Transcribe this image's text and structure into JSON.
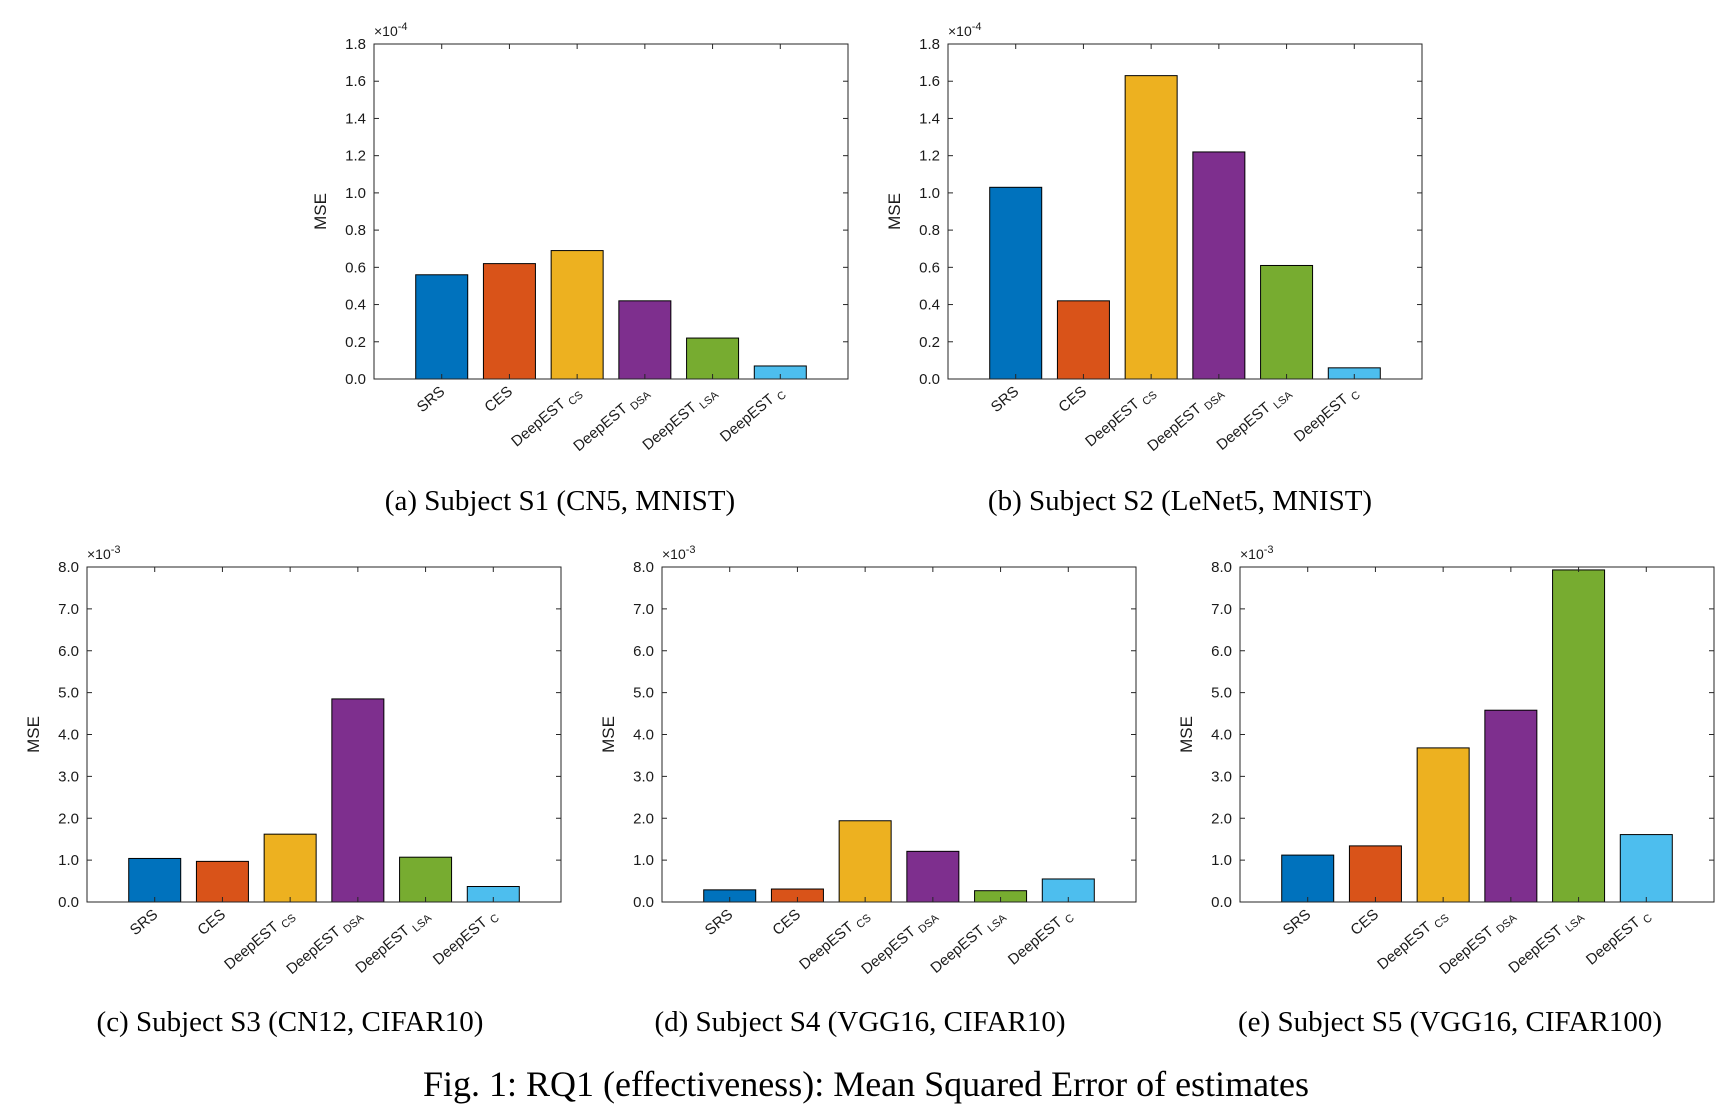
{
  "figure_caption": "Fig. 1: RQ1 (effectiveness): Mean Squared Error of estimates",
  "colors": [
    "#0072BD",
    "#D95319",
    "#EDB120",
    "#7E2F8E",
    "#77AC30",
    "#4DBEEE"
  ],
  "chart_data": [
    {
      "type": "bar",
      "caption": "(a) Subject S1 (CN5, MNIST)",
      "ylabel": "MSE",
      "exponent_base": "×10",
      "exponent": "-4",
      "ylim": [
        0,
        1.8
      ],
      "yticks": [
        "0.0",
        "0.2",
        "0.4",
        "0.6",
        "0.8",
        "1.0",
        "1.2",
        "1.4",
        "1.6",
        "1.8"
      ],
      "categories": [
        {
          "name": "SRS",
          "sub": ""
        },
        {
          "name": "CES",
          "sub": ""
        },
        {
          "name": "DeepEST",
          "sub": "CS"
        },
        {
          "name": "DeepEST",
          "sub": "DSA"
        },
        {
          "name": "DeepEST",
          "sub": "LSA"
        },
        {
          "name": "DeepEST",
          "sub": "C"
        }
      ],
      "values": [
        0.56,
        0.62,
        0.69,
        0.42,
        0.22,
        0.07
      ]
    },
    {
      "type": "bar",
      "caption": "(b) Subject S2 (LeNet5, MNIST)",
      "ylabel": "MSE",
      "exponent_base": "×10",
      "exponent": "-4",
      "ylim": [
        0,
        1.8
      ],
      "yticks": [
        "0.0",
        "0.2",
        "0.4",
        "0.6",
        "0.8",
        "1.0",
        "1.2",
        "1.4",
        "1.6",
        "1.8"
      ],
      "categories": [
        {
          "name": "SRS",
          "sub": ""
        },
        {
          "name": "CES",
          "sub": ""
        },
        {
          "name": "DeepEST",
          "sub": "CS"
        },
        {
          "name": "DeepEST",
          "sub": "DSA"
        },
        {
          "name": "DeepEST",
          "sub": "LSA"
        },
        {
          "name": "DeepEST",
          "sub": "C"
        }
      ],
      "values": [
        1.03,
        0.42,
        1.63,
        1.22,
        0.61,
        0.06
      ]
    },
    {
      "type": "bar",
      "caption": "(c) Subject S3 (CN12, CIFAR10)",
      "ylabel": "MSE",
      "exponent_base": "×10",
      "exponent": "-3",
      "ylim": [
        0,
        8
      ],
      "yticks": [
        "0.0",
        "1.0",
        "2.0",
        "3.0",
        "4.0",
        "5.0",
        "6.0",
        "7.0",
        "8.0"
      ],
      "categories": [
        {
          "name": "SRS",
          "sub": ""
        },
        {
          "name": "CES",
          "sub": ""
        },
        {
          "name": "DeepEST",
          "sub": "CS"
        },
        {
          "name": "DeepEST",
          "sub": "DSA"
        },
        {
          "name": "DeepEST",
          "sub": "LSA"
        },
        {
          "name": "DeepEST",
          "sub": "C"
        }
      ],
      "values": [
        1.04,
        0.97,
        1.62,
        4.85,
        1.07,
        0.37
      ]
    },
    {
      "type": "bar",
      "caption": "(d) Subject S4 (VGG16, CIFAR10)",
      "ylabel": "MSE",
      "exponent_base": "×10",
      "exponent": "-3",
      "ylim": [
        0,
        8
      ],
      "yticks": [
        "0.0",
        "1.0",
        "2.0",
        "3.0",
        "4.0",
        "5.0",
        "6.0",
        "7.0",
        "8.0"
      ],
      "categories": [
        {
          "name": "SRS",
          "sub": ""
        },
        {
          "name": "CES",
          "sub": ""
        },
        {
          "name": "DeepEST",
          "sub": "CS"
        },
        {
          "name": "DeepEST",
          "sub": "DSA"
        },
        {
          "name": "DeepEST",
          "sub": "LSA"
        },
        {
          "name": "DeepEST",
          "sub": "C"
        }
      ],
      "values": [
        0.29,
        0.31,
        1.94,
        1.21,
        0.27,
        0.55
      ]
    },
    {
      "type": "bar",
      "caption": "(e) Subject S5 (VGG16, CIFAR100)",
      "ylabel": "MSE",
      "exponent_base": "×10",
      "exponent": "-3",
      "ylim": [
        0,
        8
      ],
      "yticks": [
        "0.0",
        "1.0",
        "2.0",
        "3.0",
        "4.0",
        "5.0",
        "6.0",
        "7.0",
        "8.0"
      ],
      "categories": [
        {
          "name": "SRS",
          "sub": ""
        },
        {
          "name": "CES",
          "sub": ""
        },
        {
          "name": "DeepEST",
          "sub": "CS"
        },
        {
          "name": "DeepEST",
          "sub": "DSA"
        },
        {
          "name": "DeepEST",
          "sub": "LSA"
        },
        {
          "name": "DeepEST",
          "sub": "C"
        }
      ],
      "values": [
        1.12,
        1.34,
        3.68,
        4.58,
        7.93,
        1.61
      ]
    }
  ]
}
